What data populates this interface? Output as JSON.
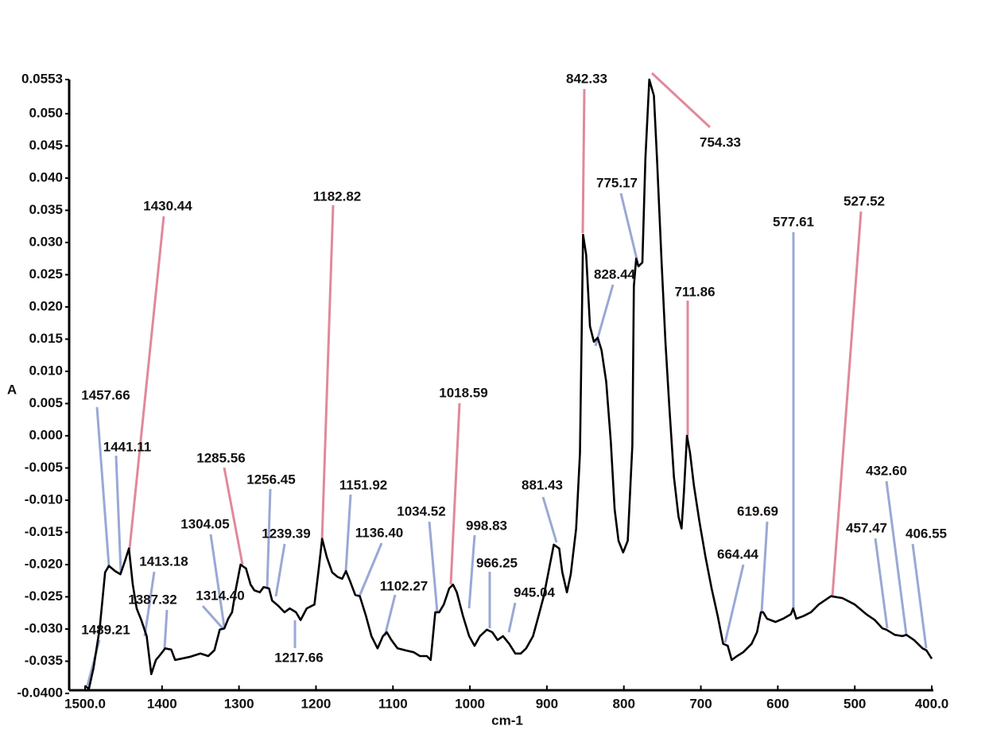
{
  "chart_data": {
    "type": "line",
    "x_label": "cm-1",
    "y_label": "A",
    "xlim": [
      1500,
      400
    ],
    "ylim": [
      -0.04,
      0.0553
    ],
    "xticks": [
      {
        "value": 1500,
        "label": "1500.0"
      },
      1400,
      1300,
      1200,
      1100,
      1000,
      900,
      800,
      700,
      600,
      500,
      {
        "value": 400,
        "label": "400.0"
      }
    ],
    "yticks": [
      0.0553,
      {
        "value": 0.05,
        "label": "0.050"
      },
      0.045,
      {
        "value": 0.04,
        "label": "0.040"
      },
      0.035,
      {
        "value": 0.03,
        "label": "0.030"
      },
      0.025,
      {
        "value": 0.02,
        "label": "0.020"
      },
      0.015,
      {
        "value": 0.01,
        "label": "0.010"
      },
      0.005,
      {
        "value": 0,
        "label": "0.000"
      },
      -0.005,
      {
        "value": -0.01,
        "label": "-0.010"
      },
      -0.015,
      {
        "value": -0.02,
        "label": "-0.020"
      },
      -0.025,
      {
        "value": -0.03,
        "label": "-0.030"
      },
      -0.035,
      {
        "value": -0.04,
        "label": "-0.0400"
      }
    ],
    "color": "#000000",
    "x": [
      1500,
      1495,
      1489,
      1481,
      1474,
      1469,
      1461,
      1454,
      1448,
      1443,
      1438,
      1433,
      1427,
      1420,
      1414,
      1408,
      1401,
      1396,
      1388,
      1383,
      1375,
      1363,
      1350,
      1340,
      1332,
      1325,
      1319,
      1314,
      1309,
      1304,
      1298,
      1291,
      1285,
      1280,
      1273,
      1268,
      1261,
      1257,
      1249,
      1241,
      1234,
      1226,
      1220,
      1212,
      1202,
      1197,
      1192,
      1186,
      1179,
      1172,
      1166,
      1161,
      1156,
      1149,
      1143,
      1135,
      1128,
      1120,
      1113,
      1108,
      1102,
      1094,
      1084,
      1073,
      1065,
      1056,
      1051,
      1045,
      1040,
      1034,
      1027,
      1022,
      1017,
      1009,
      1001,
      994,
      987,
      978,
      971,
      964,
      957,
      949,
      941,
      934,
      927,
      918,
      911,
      904,
      898,
      891,
      884,
      880,
      874,
      869,
      862,
      857,
      853,
      849,
      844,
      839,
      834,
      829,
      823,
      817,
      812,
      807,
      801,
      795,
      789,
      787,
      784,
      781,
      776,
      772,
      767,
      761,
      757,
      751,
      746,
      741,
      735,
      729,
      725,
      722,
      718,
      714,
      709,
      702,
      694,
      686,
      678,
      671,
      665,
      660,
      653,
      645,
      634,
      627,
      622,
      619,
      614,
      603,
      593,
      583,
      580,
      576,
      567,
      557,
      547,
      531,
      516,
      500,
      485,
      474,
      464,
      459,
      448,
      438,
      433,
      423,
      412,
      407,
      400
    ],
    "y": [
      -0.0388,
      -0.0393,
      -0.036,
      -0.0299,
      -0.0212,
      -0.0202,
      -0.021,
      -0.0215,
      -0.0194,
      -0.0175,
      -0.0231,
      -0.0268,
      -0.0286,
      -0.0311,
      -0.037,
      -0.0348,
      -0.0338,
      -0.033,
      -0.0332,
      -0.0348,
      -0.0346,
      -0.0343,
      -0.0338,
      -0.0342,
      -0.0333,
      -0.0301,
      -0.0299,
      -0.0284,
      -0.0274,
      -0.0237,
      -0.02,
      -0.0206,
      -0.0231,
      -0.024,
      -0.0243,
      -0.0235,
      -0.0237,
      -0.0256,
      -0.0264,
      -0.0274,
      -0.0268,
      -0.0274,
      -0.0286,
      -0.0268,
      -0.0262,
      -0.0212,
      -0.016,
      -0.0188,
      -0.0212,
      -0.0219,
      -0.0222,
      -0.021,
      -0.0225,
      -0.0247,
      -0.0249,
      -0.028,
      -0.0311,
      -0.033,
      -0.0311,
      -0.0305,
      -0.0317,
      -0.033,
      -0.0333,
      -0.0336,
      -0.0342,
      -0.0342,
      -0.0348,
      -0.0274,
      -0.0274,
      -0.0262,
      -0.0237,
      -0.0231,
      -0.0243,
      -0.028,
      -0.0311,
      -0.0326,
      -0.0311,
      -0.0301,
      -0.0305,
      -0.0317,
      -0.0311,
      -0.0323,
      -0.0338,
      -0.0338,
      -0.033,
      -0.0311,
      -0.028,
      -0.0249,
      -0.0212,
      -0.0169,
      -0.0175,
      -0.0212,
      -0.0243,
      -0.0215,
      -0.0144,
      -0.0027,
      0.0312,
      0.0281,
      0.017,
      0.0146,
      0.0152,
      0.0133,
      0.0084,
      -0.0009,
      -0.0114,
      -0.0163,
      -0.0181,
      -0.0163,
      -0.0015,
      0.0232,
      0.0275,
      0.0263,
      0.0269,
      0.043,
      0.0553,
      0.0528,
      0.043,
      0.0269,
      0.0146,
      0.0047,
      -0.0064,
      -0.0126,
      -0.0144,
      -0.0089,
      0,
      -0.0027,
      -0.0077,
      -0.0132,
      -0.0188,
      -0.0237,
      -0.028,
      -0.0323,
      -0.0326,
      -0.0348,
      -0.0342,
      -0.0336,
      -0.0323,
      -0.0305,
      -0.0274,
      -0.0274,
      -0.0284,
      -0.0289,
      -0.0284,
      -0.0277,
      -0.0268,
      -0.0284,
      -0.028,
      -0.0274,
      -0.0262,
      -0.0249,
      -0.0252,
      -0.0262,
      -0.0277,
      -0.0286,
      -0.0299,
      -0.0301,
      -0.0309,
      -0.0311,
      -0.0309,
      -0.0317,
      -0.033,
      -0.0333,
      -0.0346
    ],
    "annotations": [
      {
        "text": "1430.44",
        "color": "#e0899a"
      },
      {
        "text": "1182.82",
        "color": "#e0899a"
      },
      {
        "text": "842.33",
        "color": "#e0899a"
      },
      {
        "text": "754.33",
        "color": "#e0899a"
      },
      {
        "text": "775.17",
        "color": "#9aa8d4"
      },
      {
        "text": "828.44",
        "color": "#9aa8d4"
      },
      {
        "text": "711.86",
        "color": "#e0899a"
      },
      {
        "text": "577.61",
        "color": "#9aa8d4"
      },
      {
        "text": "527.52",
        "color": "#e0899a"
      },
      {
        "text": "1018.59",
        "color": "#e0899a"
      },
      {
        "text": "1457.66",
        "color": "#9aa8d4"
      },
      {
        "text": "1441.11",
        "color": "#9aa8d4"
      },
      {
        "text": "1285.56",
        "color": "#e0899a"
      },
      {
        "text": "1256.45",
        "color": "#9aa8d4"
      },
      {
        "text": "1151.92",
        "color": "#9aa8d4"
      },
      {
        "text": "1304.05",
        "color": "#9aa8d4"
      },
      {
        "text": "1239.39",
        "color": "#9aa8d4"
      },
      {
        "text": "1136.40",
        "color": "#9aa8d4"
      },
      {
        "text": "1034.52",
        "color": "#9aa8d4"
      },
      {
        "text": "998.83",
        "color": "#9aa8d4"
      },
      {
        "text": "881.43",
        "color": "#9aa8d4"
      },
      {
        "text": "1413.18",
        "color": "#9aa8d4"
      },
      {
        "text": "1387.32",
        "color": "#9aa8d4"
      },
      {
        "text": "1314.40",
        "color": "#9aa8d4"
      },
      {
        "text": "1102.27",
        "color": "#9aa8d4"
      },
      {
        "text": "966.25",
        "color": "#9aa8d4"
      },
      {
        "text": "945.04",
        "color": "#9aa8d4"
      },
      {
        "text": "1217.66",
        "color": "#9aa8d4"
      },
      {
        "text": "1489.21",
        "color": "#9aa8d4"
      },
      {
        "text": "664.44",
        "color": "#9aa8d4"
      },
      {
        "text": "619.69",
        "color": "#9aa8d4"
      },
      {
        "text": "432.60",
        "color": "#9aa8d4"
      },
      {
        "text": "457.47",
        "color": "#9aa8d4"
      },
      {
        "text": "406.55",
        "color": "#9aa8d4"
      }
    ]
  }
}
